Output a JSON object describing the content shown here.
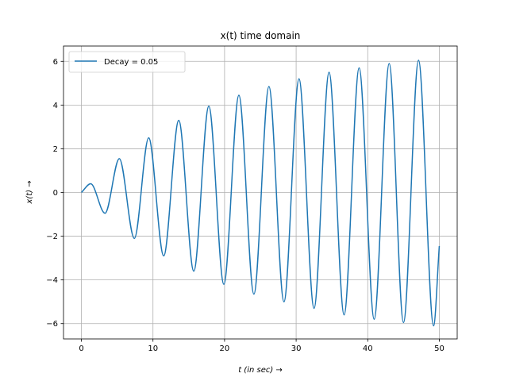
{
  "chart_data": {
    "type": "line",
    "title": "x(t) time domain",
    "xlabel": "t (in sec)",
    "ylabel": "x(t)",
    "xlim": [
      -2.5,
      52.5
    ],
    "ylim": [
      -6.7,
      6.7
    ],
    "xticks": [
      0,
      10,
      20,
      30,
      40,
      50
    ],
    "xtick_labels": [
      "0",
      "10",
      "20",
      "30",
      "40",
      "50"
    ],
    "yticks": [
      -6,
      -4,
      -2,
      0,
      2,
      4,
      6
    ],
    "ytick_labels": [
      "−6",
      "−4",
      "−2",
      "0",
      "2",
      "4",
      "6"
    ],
    "grid": true,
    "legend": "upper left",
    "colors": {
      "series": "#1f77b4",
      "grid": "#b0b0b0"
    },
    "series": [
      {
        "name": "Decay = 0.05",
        "points": [
          [
            0,
            0
          ],
          [
            1.3,
            0.4
          ],
          [
            3.3,
            -0.95
          ],
          [
            5.3,
            1.55
          ],
          [
            7.4,
            -2.1
          ],
          [
            9.4,
            2.5
          ],
          [
            11.5,
            -2.9
          ],
          [
            13.6,
            3.3
          ],
          [
            15.7,
            -3.6
          ],
          [
            17.8,
            3.95
          ],
          [
            19.9,
            -4.2
          ],
          [
            22.0,
            4.45
          ],
          [
            24.1,
            -4.65
          ],
          [
            26.2,
            4.85
          ],
          [
            28.3,
            -5.0
          ],
          [
            30.4,
            5.2
          ],
          [
            32.5,
            -5.3
          ],
          [
            34.6,
            5.5
          ],
          [
            36.7,
            -5.6
          ],
          [
            38.8,
            5.7
          ],
          [
            40.9,
            -5.8
          ],
          [
            43.0,
            5.9
          ],
          [
            45.0,
            -5.95
          ],
          [
            47.1,
            6.05
          ],
          [
            49.2,
            -6.1
          ],
          [
            50.0,
            -2.45
          ]
        ]
      }
    ]
  }
}
